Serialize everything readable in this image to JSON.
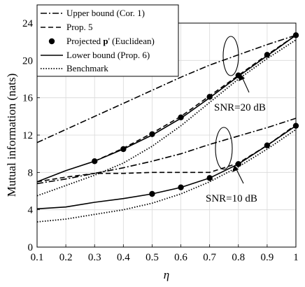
{
  "chart_data": {
    "type": "line",
    "title": "",
    "xlabel": "η",
    "ylabel": "Mutual information (nats)",
    "xlim": [
      0.1,
      1
    ],
    "ylim": [
      0,
      24
    ],
    "xticks": [
      "0.1",
      "0.2",
      "0.3",
      "0.4",
      "0.5",
      "0.6",
      "0.7",
      "0.8",
      "0.9",
      "1"
    ],
    "yticks": [
      "0",
      "4",
      "8",
      "12",
      "16",
      "20",
      "24"
    ],
    "grid": true,
    "legend_position": "top-left",
    "legend": [
      {
        "label": "Upper bound (Cor. 1)",
        "style": "dashdot",
        "marker": "none"
      },
      {
        "label": "Prop. 5",
        "style": "dashed",
        "marker": "none"
      },
      {
        "label_prefix": "Projected ",
        "label_bold": "p",
        "label_suffix": "' (Euclidean)",
        "style": "none",
        "marker": "circle"
      },
      {
        "label": "Lower bound (Prop. 6)",
        "style": "solid",
        "marker": "none"
      },
      {
        "label": "Benchmark",
        "style": "dotted",
        "marker": "none"
      }
    ],
    "annotations": [
      {
        "text": "SNR=20 dB"
      },
      {
        "text": "SNR=10 dB"
      }
    ],
    "series": [
      {
        "style": "dashdot",
        "group": "SNR=20 dB",
        "x": [
          0.1,
          0.2,
          0.3,
          0.4,
          0.5,
          0.6,
          0.7,
          0.8,
          0.9,
          1.0
        ],
        "y": [
          11.2,
          12.6,
          14.0,
          15.4,
          16.8,
          18.2,
          19.5,
          20.6,
          21.7,
          22.7
        ]
      },
      {
        "style": "dashed",
        "group": "SNR=20 dB",
        "x": [
          0.3,
          0.4,
          0.5,
          0.6,
          0.7,
          0.8,
          0.9,
          1.0
        ],
        "y": [
          9.2,
          10.6,
          12.2,
          14.0,
          16.2,
          18.4,
          20.6,
          22.7
        ]
      },
      {
        "style": "markers",
        "group": "SNR=20 dB",
        "x": [
          0.3,
          0.4,
          0.5,
          0.6,
          0.7,
          0.8,
          0.9,
          1.0
        ],
        "y": [
          9.2,
          10.5,
          12.1,
          13.9,
          16.1,
          18.4,
          20.6,
          22.7
        ]
      },
      {
        "style": "solid",
        "group": "SNR=20 dB",
        "x": [
          0.1,
          0.2,
          0.3,
          0.4,
          0.5,
          0.6,
          0.7,
          0.8,
          0.9,
          1.0
        ],
        "y": [
          7.0,
          8.2,
          9.2,
          10.5,
          12.0,
          13.8,
          16.0,
          18.3,
          20.5,
          22.7
        ]
      },
      {
        "style": "dotted",
        "group": "SNR=20 dB",
        "x": [
          0.1,
          0.2,
          0.3,
          0.4,
          0.5,
          0.6,
          0.7,
          0.8,
          0.9,
          1.0
        ],
        "y": [
          5.5,
          6.6,
          7.7,
          9.0,
          10.8,
          13.0,
          15.5,
          18.0,
          20.2,
          22.2
        ]
      },
      {
        "style": "dashdot",
        "group": "SNR=10 dB",
        "x": [
          0.1,
          0.2,
          0.3,
          0.4,
          0.5,
          0.6,
          0.7,
          0.8,
          0.9,
          1.0
        ],
        "y": [
          6.8,
          7.3,
          7.9,
          8.5,
          9.2,
          10.0,
          11.0,
          11.9,
          12.8,
          13.8
        ]
      },
      {
        "style": "dashed",
        "group": "SNR=10 dB",
        "x": [
          0.1,
          0.2,
          0.3,
          0.4,
          0.5,
          0.6,
          0.7,
          0.8,
          0.9,
          1.0
        ],
        "y": [
          7.0,
          7.5,
          7.9,
          7.9,
          8.0,
          8.0,
          8.0,
          9.0,
          10.9,
          13.1
        ]
      },
      {
        "style": "markers",
        "group": "SNR=10 dB",
        "x": [
          0.5,
          0.6,
          0.7,
          0.8,
          0.9,
          1.0
        ],
        "y": [
          5.7,
          6.4,
          7.4,
          8.9,
          10.9,
          13.0
        ]
      },
      {
        "style": "solid",
        "group": "SNR=10 dB",
        "x": [
          0.1,
          0.2,
          0.3,
          0.4,
          0.5,
          0.6,
          0.7,
          0.8,
          0.9,
          1.0
        ],
        "y": [
          4.1,
          4.3,
          4.8,
          5.2,
          5.7,
          6.4,
          7.4,
          8.9,
          10.9,
          13.0
        ]
      },
      {
        "style": "dotted",
        "group": "SNR=10 dB",
        "x": [
          0.1,
          0.2,
          0.3,
          0.4,
          0.5,
          0.6,
          0.7,
          0.8,
          0.9,
          1.0
        ],
        "y": [
          2.7,
          3.0,
          3.5,
          4.0,
          4.7,
          5.7,
          7.0,
          8.6,
          10.5,
          12.6
        ]
      }
    ]
  }
}
